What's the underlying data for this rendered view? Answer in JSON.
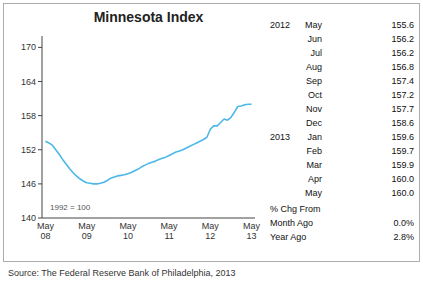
{
  "chart_data": {
    "type": "line",
    "title": "Minnesota Index",
    "source": "Source: The Federal Reserve Bank of Philadelphia, 2013",
    "annotation": "1992 = 100",
    "color": "#4db8e8",
    "grid": false,
    "ylim": [
      140,
      172
    ],
    "yticks": [
      140,
      146,
      152,
      158,
      164,
      170
    ],
    "categories": [
      "May\n08",
      null,
      null,
      null,
      null,
      null,
      null,
      null,
      null,
      null,
      null,
      null,
      "May\n09",
      null,
      null,
      null,
      null,
      null,
      null,
      null,
      null,
      null,
      null,
      null,
      "May\n10",
      null,
      null,
      null,
      null,
      null,
      null,
      null,
      null,
      null,
      null,
      null,
      "May\n11",
      null,
      null,
      null,
      null,
      null,
      null,
      null,
      null,
      null,
      null,
      null,
      "May\n12",
      null,
      null,
      null,
      null,
      null,
      null,
      null,
      null,
      null,
      null,
      null,
      "May\n13"
    ],
    "values": [
      153.5,
      153.2,
      152.8,
      152.0,
      151.2,
      150.3,
      149.5,
      148.7,
      148.0,
      147.4,
      146.9,
      146.5,
      146.2,
      146.1,
      146.0,
      146.0,
      146.1,
      146.3,
      146.6,
      147.0,
      147.2,
      147.4,
      147.5,
      147.6,
      147.8,
      148.0,
      148.3,
      148.6,
      149.0,
      149.3,
      149.6,
      149.8,
      150.0,
      150.3,
      150.5,
      150.7,
      151.0,
      151.3,
      151.6,
      151.8,
      152.0,
      152.3,
      152.6,
      152.9,
      153.2,
      153.5,
      153.8,
      154.2,
      155.6,
      156.2,
      156.2,
      156.8,
      157.4,
      157.2,
      157.7,
      158.6,
      159.6,
      159.7,
      159.9,
      160.0,
      160.0
    ],
    "table": [
      {
        "title": "2012",
        "rows": [
          {
            "name": "May",
            "value": {
              "value": 155.6,
              "label": "155.6"
            }
          },
          {
            "name": "Jun",
            "value": {
              "value": 156.2,
              "label": "156.2"
            }
          },
          {
            "name": "Jul",
            "value": {
              "value": 156.2,
              "label": "156.2"
            }
          },
          {
            "name": "Aug",
            "value": {
              "value": 156.8,
              "label": "156.8"
            }
          },
          {
            "name": "Sep",
            "value": {
              "value": 157.4,
              "label": "157.4"
            }
          },
          {
            "name": "Oct",
            "value": {
              "value": 157.2,
              "label": "157.2"
            }
          },
          {
            "name": "Nov",
            "value": {
              "value": 157.7,
              "label": "157.7"
            }
          },
          {
            "name": "Dec",
            "value": {
              "value": 158.6,
              "label": "158.6"
            }
          }
        ]
      },
      {
        "title": "2013",
        "rows": [
          {
            "name": "Jan",
            "value": {
              "value": 159.6,
              "label": "159.6"
            }
          },
          {
            "name": "Feb",
            "value": {
              "value": 159.7,
              "label": "159.7"
            }
          },
          {
            "name": "Mar",
            "value": {
              "value": 159.9,
              "label": "159.9"
            }
          },
          {
            "name": "Apr",
            "value": {
              "value": 160.0,
              "label": "160.0"
            }
          },
          {
            "name": "May",
            "value": {
              "value": 160.0,
              "label": "160.0"
            }
          }
        ]
      }
    ],
    "change": {
      "title": "% Chg From",
      "rows": [
        {
          "name": "Month Ago",
          "value": {
            "value": 0.0,
            "label": "0.0%"
          }
        },
        {
          "name": "Year Ago",
          "value": {
            "value": 2.8,
            "label": "2.8%"
          }
        }
      ]
    }
  }
}
